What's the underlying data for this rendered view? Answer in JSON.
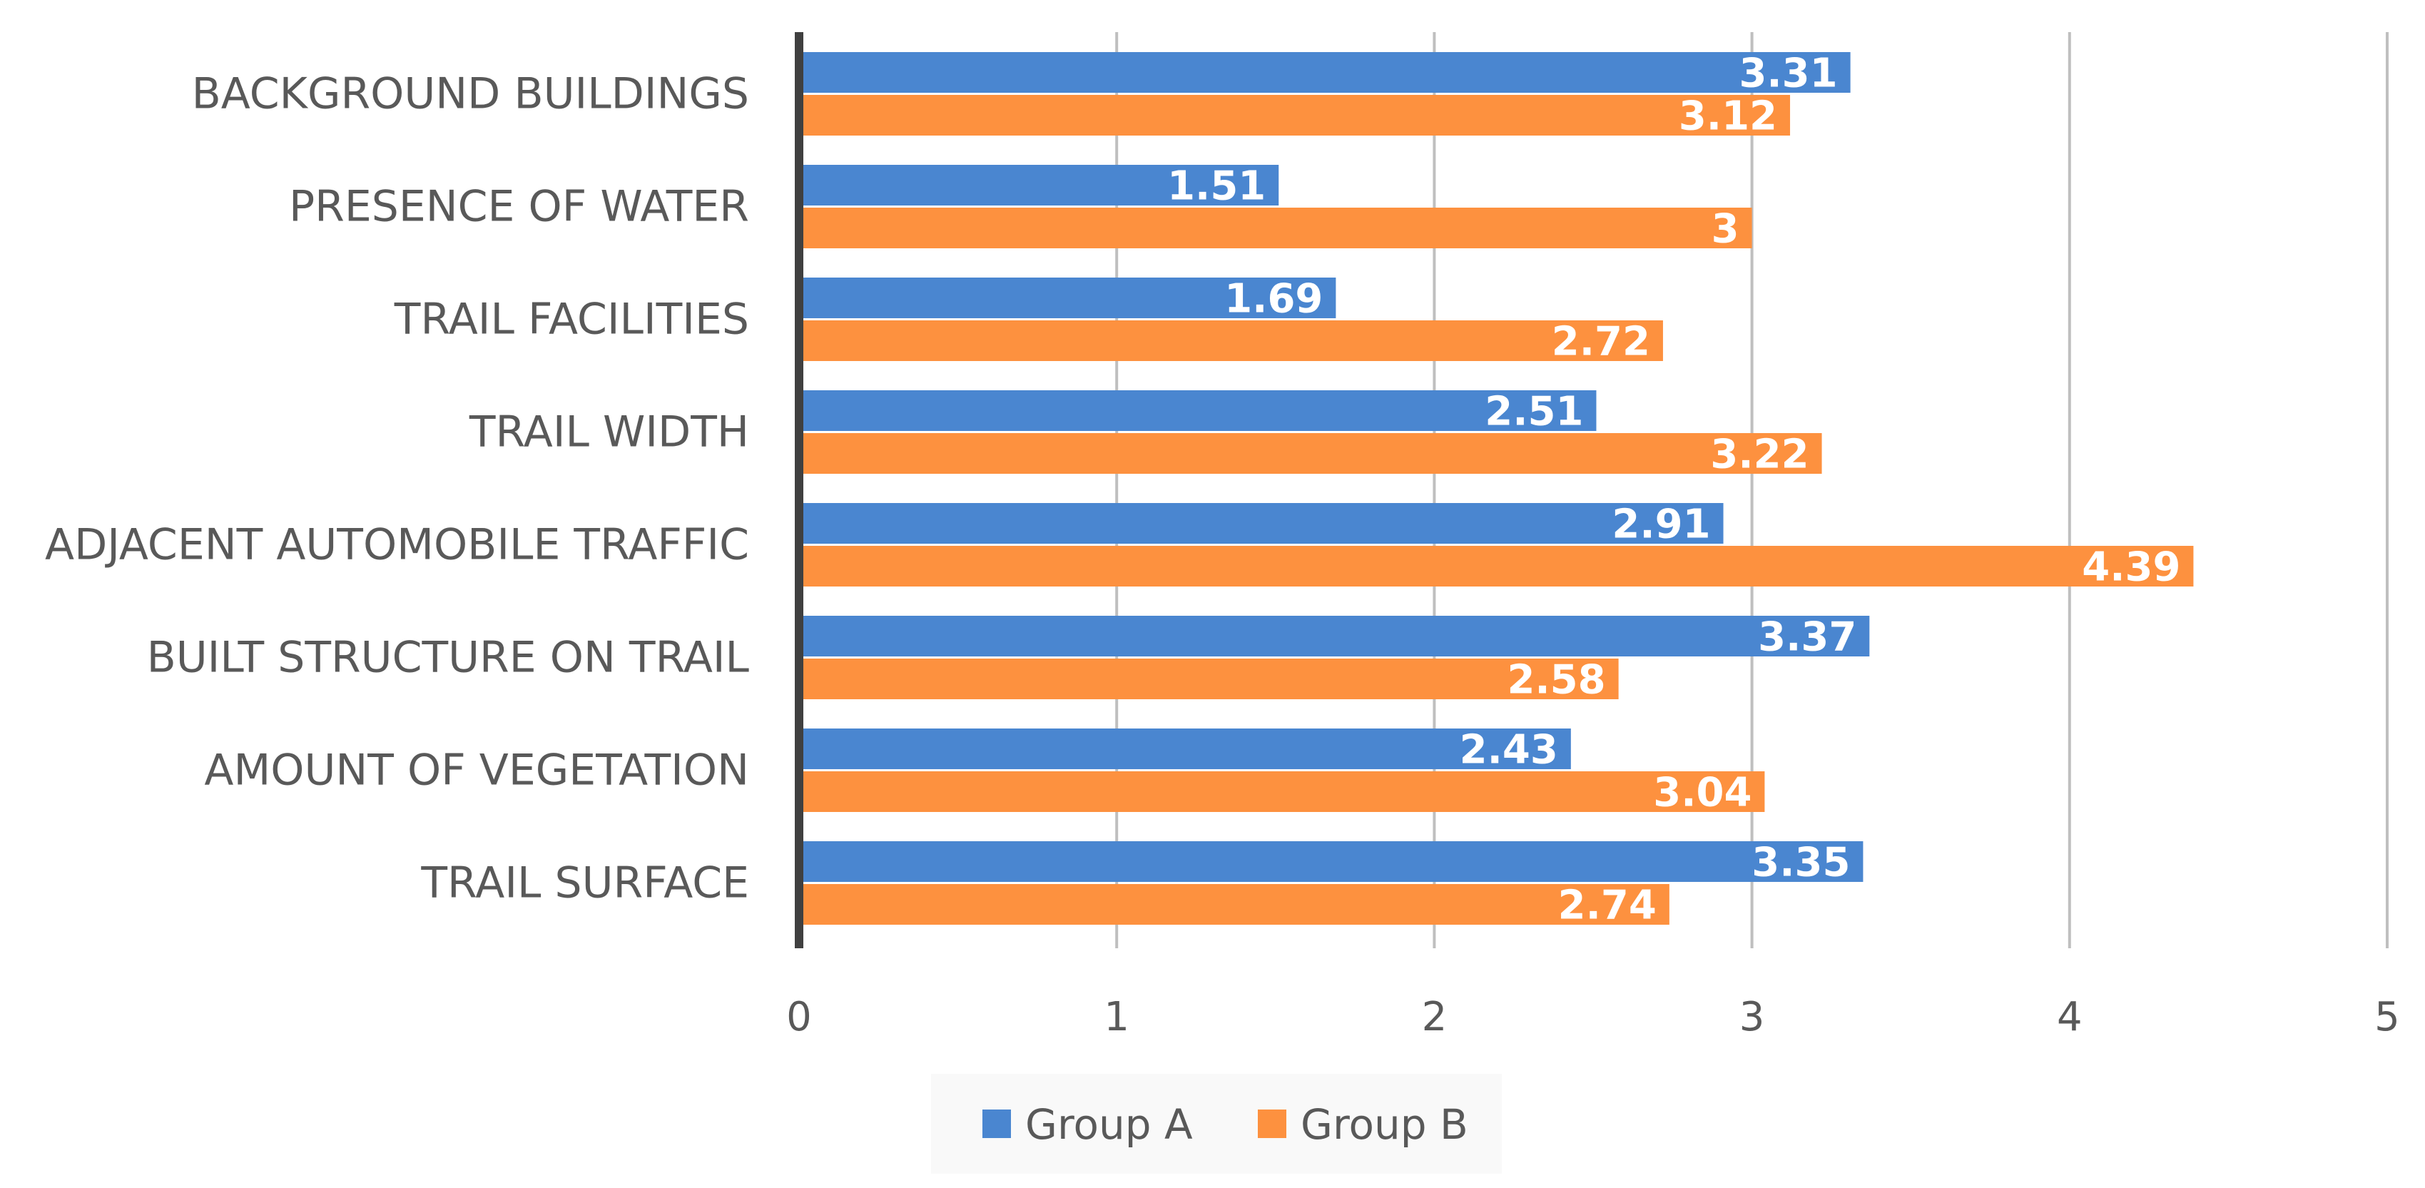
{
  "chart_data": {
    "type": "bar",
    "orientation": "horizontal",
    "title": "",
    "xlabel": "",
    "ylabel": "",
    "categories": [
      "BACKGROUND BUILDINGS",
      "PRESENCE OF WATER",
      "TRAIL FACILITIES",
      "TRAIL WIDTH",
      "ADJACENT AUTOMOBILE TRAFFIC",
      "BUILT STRUCTURE ON TRAIL",
      "AMOUNT OF VEGETATION",
      "TRAIL SURFACE"
    ],
    "series": [
      {
        "name": "Group A",
        "color": "#4a86d0",
        "values": [
          3.31,
          1.51,
          1.69,
          2.51,
          2.91,
          3.37,
          2.43,
          3.35
        ],
        "labels": [
          "3.31",
          "1.51",
          "1.69",
          "2.51",
          "2.91",
          "3.37",
          "2.43",
          "3.35"
        ]
      },
      {
        "name": "Group B",
        "color": "#fd913f",
        "values": [
          3.12,
          3,
          2.72,
          3.22,
          4.39,
          2.58,
          3.04,
          2.74
        ],
        "labels": [
          "3.12",
          "3",
          "2.72",
          "3.22",
          "4.39",
          "2.58",
          "3.04",
          "2.74"
        ]
      }
    ],
    "xlim": [
      0,
      5
    ],
    "xticks": [
      "0",
      "1",
      "2",
      "3",
      "4",
      "5"
    ],
    "grid": true,
    "legend": {
      "position": "bottom",
      "entries": [
        "Group A",
        "Group B"
      ]
    }
  }
}
